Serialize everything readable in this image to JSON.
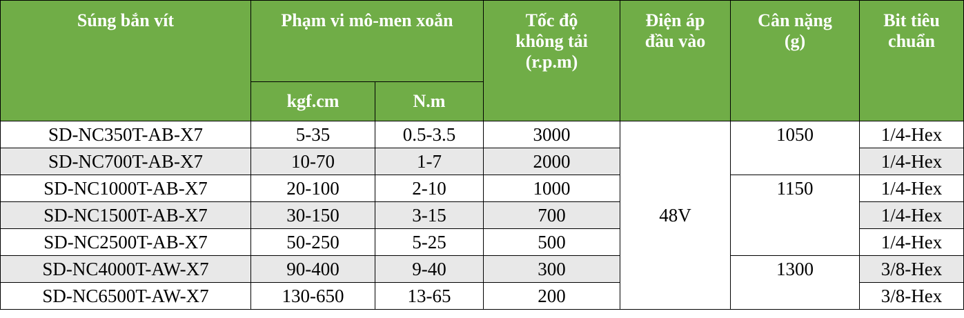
{
  "header": {
    "model": "Súng bắn vít",
    "torque": "Phạm vi mô-men xoắn",
    "torque_kgf": "kgf.cm",
    "torque_nm": "N.m",
    "speed": "Tốc độ không tải (r.p.m)",
    "voltage": "Điện áp đầu vào",
    "weight": "Cân nặng (g)",
    "bit": "Bit tiêu chuẩn"
  },
  "voltage": "48V",
  "rows": [
    {
      "model": "SD-NC350T-AB-X7",
      "kgf": "5-35",
      "nm": "0.5-3.5",
      "speed": "3000",
      "weight": "1050",
      "bit": "1/4-Hex"
    },
    {
      "model": "SD-NC700T-AB-X7",
      "kgf": "10-70",
      "nm": "1-7",
      "speed": "2000",
      "weight": null,
      "bit": "1/4-Hex"
    },
    {
      "model": "SD-NC1000T-AB-X7",
      "kgf": "20-100",
      "nm": "2-10",
      "speed": "1000",
      "weight": "1150",
      "bit": "1/4-Hex"
    },
    {
      "model": "SD-NC1500T-AB-X7",
      "kgf": "30-150",
      "nm": "3-15",
      "speed": "700",
      "weight": null,
      "bit": "1/4-Hex"
    },
    {
      "model": "SD-NC2500T-AB-X7",
      "kgf": "50-250",
      "nm": "5-25",
      "speed": "500",
      "weight": null,
      "bit": "1/4-Hex"
    },
    {
      "model": "SD-NC4000T-AW-X7",
      "kgf": "90-400",
      "nm": "9-40",
      "speed": "300",
      "weight": "1300",
      "bit": "3/8-Hex"
    },
    {
      "model": "SD-NC6500T-AW-X7",
      "kgf": "130-650",
      "nm": "13-65",
      "speed": "200",
      "weight": null,
      "bit": "3/8-Hex"
    }
  ]
}
